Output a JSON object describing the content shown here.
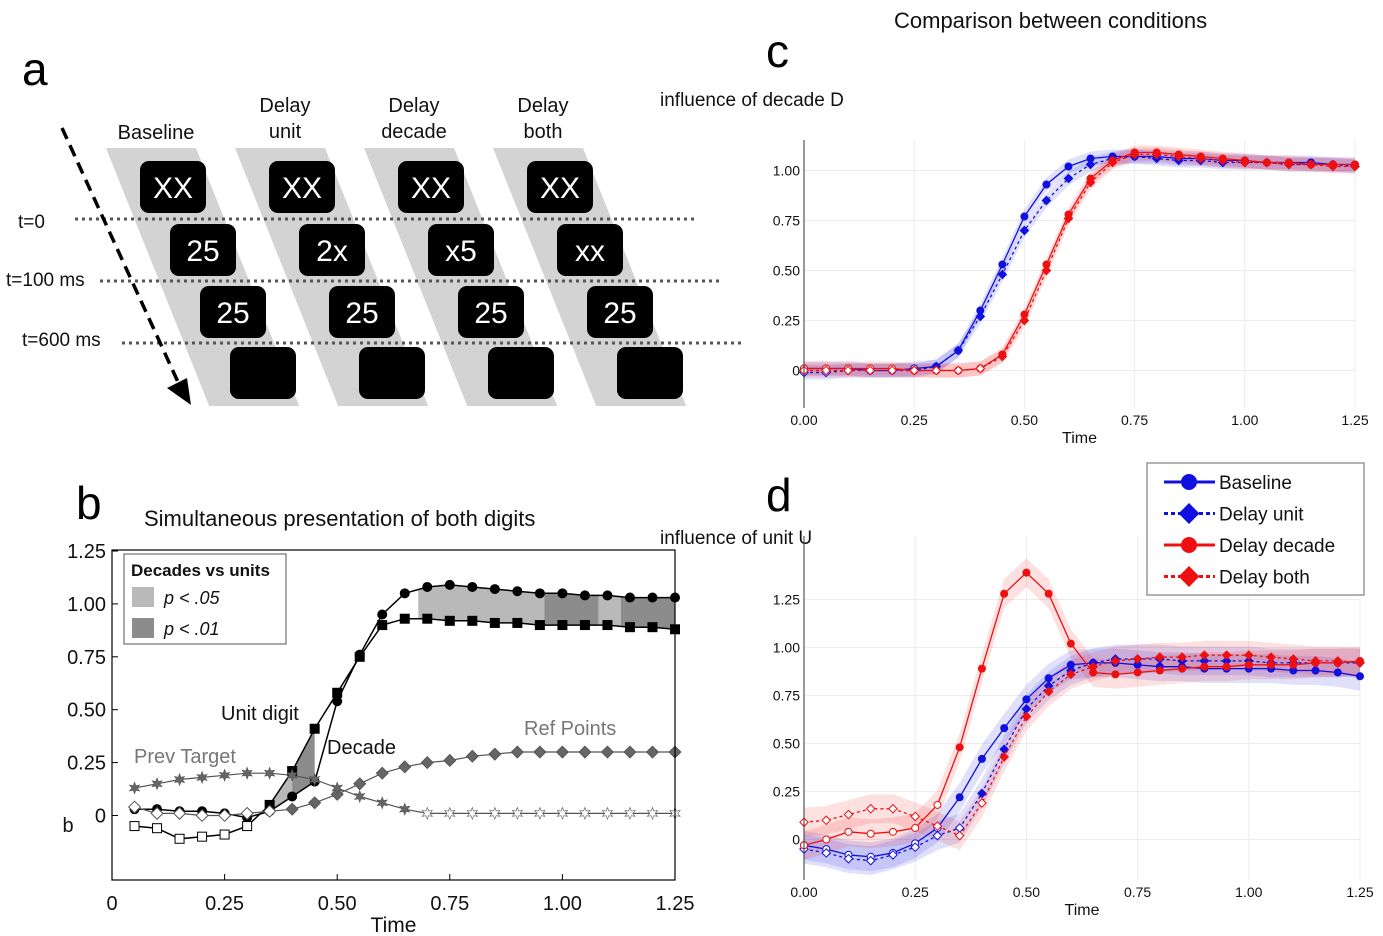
{
  "panels": {
    "a": {
      "letter": "a",
      "conditions": [
        {
          "name_lines": [
            "Baseline"
          ],
          "first": "XX",
          "second": "25",
          "third": "25"
        },
        {
          "name_lines": [
            "Delay",
            "unit"
          ],
          "first": "XX",
          "second": "2x",
          "third": "25"
        },
        {
          "name_lines": [
            "Delay",
            "decade"
          ],
          "first": "XX",
          "second": "x5",
          "third": "25"
        },
        {
          "name_lines": [
            "Delay",
            "both"
          ],
          "first": "XX",
          "second": "xx",
          "third": "25"
        }
      ],
      "time_labels": [
        "t=0",
        "t=100 ms",
        "t=600 ms"
      ]
    },
    "b": {
      "letter": "b"
    },
    "c": {
      "letter": "c"
    },
    "d": {
      "letter": "d"
    }
  },
  "chart_data": [
    {
      "id": "b",
      "type": "line",
      "title": "Simultaneous presentation of both digits",
      "xlabel": "Time",
      "ylabel": "b",
      "xlim": [
        0,
        1.25
      ],
      "ylim": [
        -0.15,
        1.25
      ],
      "xticks": [
        "0",
        "0.25",
        "0.50",
        "0.75",
        "1.00",
        "1.25"
      ],
      "yticks": [
        "0",
        "0.25",
        "0.50",
        "0.75",
        "1.00",
        "1.25"
      ],
      "grid": false,
      "legend": {
        "title": "Decades vs units",
        "position": "top-left",
        "entries": [
          {
            "label": "p < .05",
            "color": "#b9b9b9"
          },
          {
            "label": "p < .01",
            "color": "#8c8c8c"
          }
        ]
      },
      "annotations": [
        "Unit digit",
        "Decade",
        "Prev Target",
        "Ref Points"
      ],
      "x": [
        0.05,
        0.1,
        0.15,
        0.2,
        0.25,
        0.3,
        0.35,
        0.4,
        0.45,
        0.5,
        0.55,
        0.6,
        0.65,
        0.7,
        0.75,
        0.8,
        0.85,
        0.9,
        0.95,
        1.0,
        1.05,
        1.1,
        1.15,
        1.2,
        1.25
      ],
      "series": [
        {
          "name": "Decade",
          "marker": "circle",
          "values": [
            0.03,
            0.03,
            0.02,
            0.02,
            0.01,
            -0.01,
            0.02,
            0.09,
            0.16,
            0.54,
            0.76,
            0.95,
            1.05,
            1.08,
            1.09,
            1.08,
            1.07,
            1.06,
            1.05,
            1.05,
            1.04,
            1.04,
            1.03,
            1.03,
            1.03
          ]
        },
        {
          "name": "Unit digit",
          "marker": "square",
          "values": [
            -0.05,
            -0.06,
            -0.11,
            -0.1,
            -0.09,
            -0.05,
            0.05,
            0.21,
            0.41,
            0.58,
            0.75,
            0.9,
            0.93,
            0.93,
            0.92,
            0.92,
            0.91,
            0.91,
            0.9,
            0.9,
            0.9,
            0.9,
            0.89,
            0.89,
            0.88
          ]
        },
        {
          "name": "Ref Points",
          "marker": "diamond",
          "values": [
            0.04,
            0.01,
            0.01,
            0.0,
            0.0,
            0.01,
            0.02,
            0.03,
            0.06,
            0.1,
            0.15,
            0.2,
            0.23,
            0.25,
            0.26,
            0.28,
            0.29,
            0.3,
            0.3,
            0.3,
            0.3,
            0.3,
            0.3,
            0.3,
            0.3
          ]
        },
        {
          "name": "Prev Target",
          "marker": "star",
          "values": [
            0.13,
            0.15,
            0.17,
            0.18,
            0.19,
            0.2,
            0.2,
            0.19,
            0.17,
            0.13,
            0.09,
            0.06,
            0.03,
            0.01,
            0.01,
            0.01,
            0.01,
            0.01,
            0.01,
            0.01,
            0.01,
            0.01,
            0.01,
            0.01,
            0.01
          ]
        }
      ],
      "significance_p05": [
        [
          0.35,
          0.4
        ],
        [
          0.68,
          0.96
        ],
        [
          1.08,
          1.13
        ]
      ],
      "significance_p01": [
        [
          0.4,
          0.45
        ],
        [
          0.96,
          1.08
        ],
        [
          1.13,
          1.25
        ]
      ]
    },
    {
      "id": "c",
      "type": "line",
      "title": "Comparison between conditions",
      "xlabel": "Time",
      "ylabel": "influence of decade D",
      "xlim": [
        0,
        1.25
      ],
      "ylim": [
        -0.1,
        1.1
      ],
      "xticks": [
        "0.00",
        "0.25",
        "0.50",
        "0.75",
        "1.00",
        "1.25"
      ],
      "yticks": [
        "0",
        "0.25",
        "0.50",
        "0.75",
        "1.00"
      ],
      "grid": true,
      "x": [
        0,
        0.05,
        0.1,
        0.15,
        0.2,
        0.25,
        0.3,
        0.35,
        0.4,
        0.45,
        0.5,
        0.55,
        0.6,
        0.65,
        0.7,
        0.75,
        0.8,
        0.85,
        0.9,
        0.95,
        1.0,
        1.05,
        1.1,
        1.15,
        1.2,
        1.25
      ],
      "series": [
        {
          "name": "Baseline",
          "color": "#1010e0",
          "dash": false,
          "marker": "circle",
          "values": [
            0.01,
            0.01,
            0.01,
            0.0,
            0.0,
            0.01,
            0.02,
            0.1,
            0.3,
            0.53,
            0.77,
            0.93,
            1.02,
            1.06,
            1.07,
            1.07,
            1.07,
            1.06,
            1.06,
            1.05,
            1.05,
            1.04,
            1.04,
            1.04,
            1.03,
            1.03
          ]
        },
        {
          "name": "Delay unit",
          "color": "#1010e0",
          "dash": true,
          "marker": "diamond",
          "values": [
            -0.01,
            -0.01,
            0.0,
            0.0,
            0.0,
            0.0,
            0.02,
            0.1,
            0.27,
            0.48,
            0.7,
            0.85,
            0.96,
            1.03,
            1.06,
            1.07,
            1.06,
            1.05,
            1.05,
            1.04,
            1.04,
            1.04,
            1.03,
            1.03,
            1.03,
            1.02
          ]
        },
        {
          "name": "Delay decade",
          "color": "#ee1010",
          "dash": false,
          "marker": "circle",
          "values": [
            0.01,
            0.01,
            0.01,
            0.01,
            0.01,
            0.0,
            0.0,
            0.0,
            0.01,
            0.08,
            0.28,
            0.53,
            0.78,
            0.96,
            1.05,
            1.09,
            1.09,
            1.08,
            1.07,
            1.06,
            1.05,
            1.04,
            1.04,
            1.03,
            1.03,
            1.03
          ]
        },
        {
          "name": "Delay both",
          "color": "#ee1010",
          "dash": true,
          "marker": "diamond",
          "values": [
            0.0,
            0.0,
            0.0,
            0.0,
            0.0,
            0.0,
            0.0,
            0.0,
            0.01,
            0.07,
            0.25,
            0.5,
            0.76,
            0.94,
            1.04,
            1.08,
            1.08,
            1.07,
            1.06,
            1.05,
            1.04,
            1.04,
            1.03,
            1.03,
            1.02,
            1.02
          ]
        }
      ]
    },
    {
      "id": "d",
      "type": "line",
      "title": "",
      "xlabel": "Time",
      "ylabel": "influence of unit U",
      "xlim": [
        0,
        1.25
      ],
      "ylim": [
        -0.15,
        1.5
      ],
      "xticks": [
        "0.00",
        "0.25",
        "0.50",
        "0.75",
        "1.00",
        "1.25"
      ],
      "yticks": [
        "0",
        "0.25",
        "0.50",
        "0.75",
        "1.00",
        "1.25"
      ],
      "grid": true,
      "legend": {
        "position": "top-right",
        "entries": [
          "Baseline",
          "Delay unit",
          "Delay decade",
          "Delay both"
        ]
      },
      "x": [
        0,
        0.05,
        0.1,
        0.15,
        0.2,
        0.25,
        0.3,
        0.35,
        0.4,
        0.45,
        0.5,
        0.55,
        0.6,
        0.65,
        0.7,
        0.75,
        0.8,
        0.85,
        0.9,
        0.95,
        1.0,
        1.05,
        1.1,
        1.15,
        1.2,
        1.25
      ],
      "series": [
        {
          "name": "Baseline",
          "color": "#1010e0",
          "dash": false,
          "marker": "circle",
          "values": [
            -0.03,
            -0.05,
            -0.08,
            -0.09,
            -0.07,
            -0.02,
            0.06,
            0.22,
            0.42,
            0.58,
            0.73,
            0.84,
            0.91,
            0.92,
            0.92,
            0.91,
            0.9,
            0.9,
            0.89,
            0.89,
            0.89,
            0.89,
            0.88,
            0.88,
            0.87,
            0.85
          ]
        },
        {
          "name": "Delay unit",
          "color": "#1010e0",
          "dash": true,
          "marker": "diamond",
          "values": [
            -0.05,
            -0.07,
            -0.1,
            -0.11,
            -0.08,
            -0.04,
            0.02,
            0.06,
            0.24,
            0.47,
            0.68,
            0.8,
            0.88,
            0.92,
            0.94,
            0.94,
            0.94,
            0.93,
            0.93,
            0.93,
            0.93,
            0.92,
            0.92,
            0.92,
            0.92,
            0.92
          ]
        },
        {
          "name": "Delay decade",
          "color": "#ee1010",
          "dash": false,
          "marker": "circle",
          "values": [
            -0.03,
            0.0,
            0.04,
            0.03,
            0.04,
            0.06,
            0.18,
            0.48,
            0.89,
            1.28,
            1.39,
            1.28,
            1.02,
            0.87,
            0.86,
            0.87,
            0.88,
            0.89,
            0.9,
            0.9,
            0.91,
            0.91,
            0.91,
            0.92,
            0.92,
            0.93
          ]
        },
        {
          "name": "Delay both",
          "color": "#ee1010",
          "dash": true,
          "marker": "diamond",
          "values": [
            0.09,
            0.1,
            0.13,
            0.16,
            0.16,
            0.12,
            0.07,
            0.02,
            0.19,
            0.43,
            0.64,
            0.77,
            0.86,
            0.9,
            0.93,
            0.94,
            0.95,
            0.95,
            0.96,
            0.96,
            0.96,
            0.95,
            0.94,
            0.93,
            0.93,
            0.92
          ]
        }
      ]
    }
  ]
}
